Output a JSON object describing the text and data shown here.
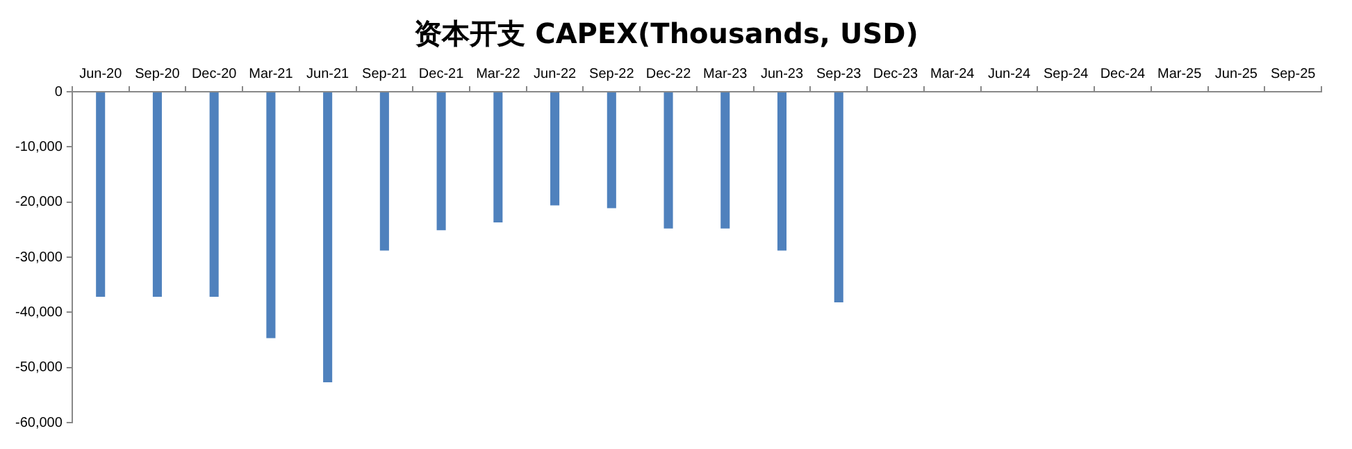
{
  "chart_data": {
    "type": "bar",
    "title": "资本开支 CAPEX(Thousands, USD)",
    "categories": [
      "Jun-20",
      "Sep-20",
      "Dec-20",
      "Mar-21",
      "Jun-21",
      "Sep-21",
      "Dec-21",
      "Mar-22",
      "Jun-22",
      "Sep-22",
      "Dec-22",
      "Mar-23",
      "Jun-23",
      "Sep-23",
      "Dec-23",
      "Mar-24",
      "Jun-24",
      "Sep-24",
      "Dec-24",
      "Mar-25",
      "Jun-25",
      "Sep-25"
    ],
    "values": [
      -37200,
      -37200,
      -37200,
      -44700,
      -52700,
      -28800,
      -25100,
      -23700,
      -20600,
      -21100,
      -24800,
      -24800,
      -28800,
      -38200,
      null,
      null,
      null,
      null,
      null,
      null,
      null,
      null
    ],
    "color": "#4f81bd",
    "ylim": [
      -60000,
      0
    ],
    "yticks": [
      {
        "value": -60000,
        "label": "-60,000"
      },
      {
        "value": -50000,
        "label": "-50,000"
      },
      {
        "value": -40000,
        "label": "-40,000"
      },
      {
        "value": -30000,
        "label": "-30,000"
      },
      {
        "value": -20000,
        "label": "-20,000"
      },
      {
        "value": -10000,
        "label": "-10,000"
      },
      0
    ],
    "grid": false
  }
}
